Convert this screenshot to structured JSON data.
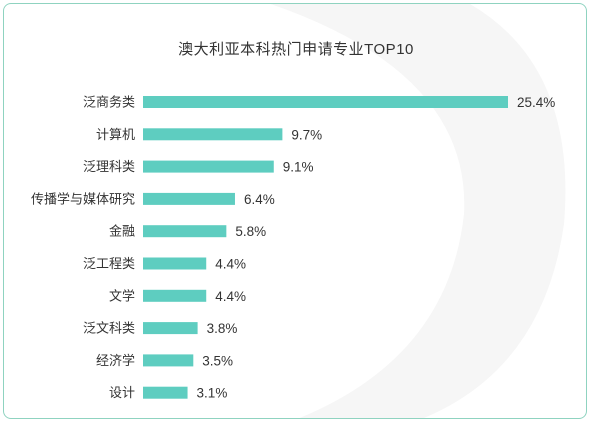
{
  "chart_data": {
    "type": "bar",
    "orientation": "horizontal",
    "title": "澳大利亚本科热门申请专业TOP10",
    "categories": [
      "泛商务类",
      "计算机",
      "泛理科类",
      "传播学与媒体研究",
      "金融",
      "泛工程类",
      "文学",
      "泛文科类",
      "经济学",
      "设计"
    ],
    "values": [
      25.4,
      9.7,
      9.1,
      6.4,
      5.8,
      4.4,
      4.4,
      3.8,
      3.5,
      3.1
    ],
    "value_labels": [
      "25.4%",
      "9.7%",
      "9.1%",
      "6.4%",
      "5.8%",
      "4.4%",
      "4.4%",
      "3.8%",
      "3.5%",
      "3.1%"
    ],
    "xlabel": "",
    "ylabel": "",
    "xlim": [
      0,
      25.4
    ],
    "grid": false,
    "legend": "none",
    "bar_color": "#5ecdc0",
    "text_color": "#333333",
    "border_color": "#8fd3c0"
  }
}
